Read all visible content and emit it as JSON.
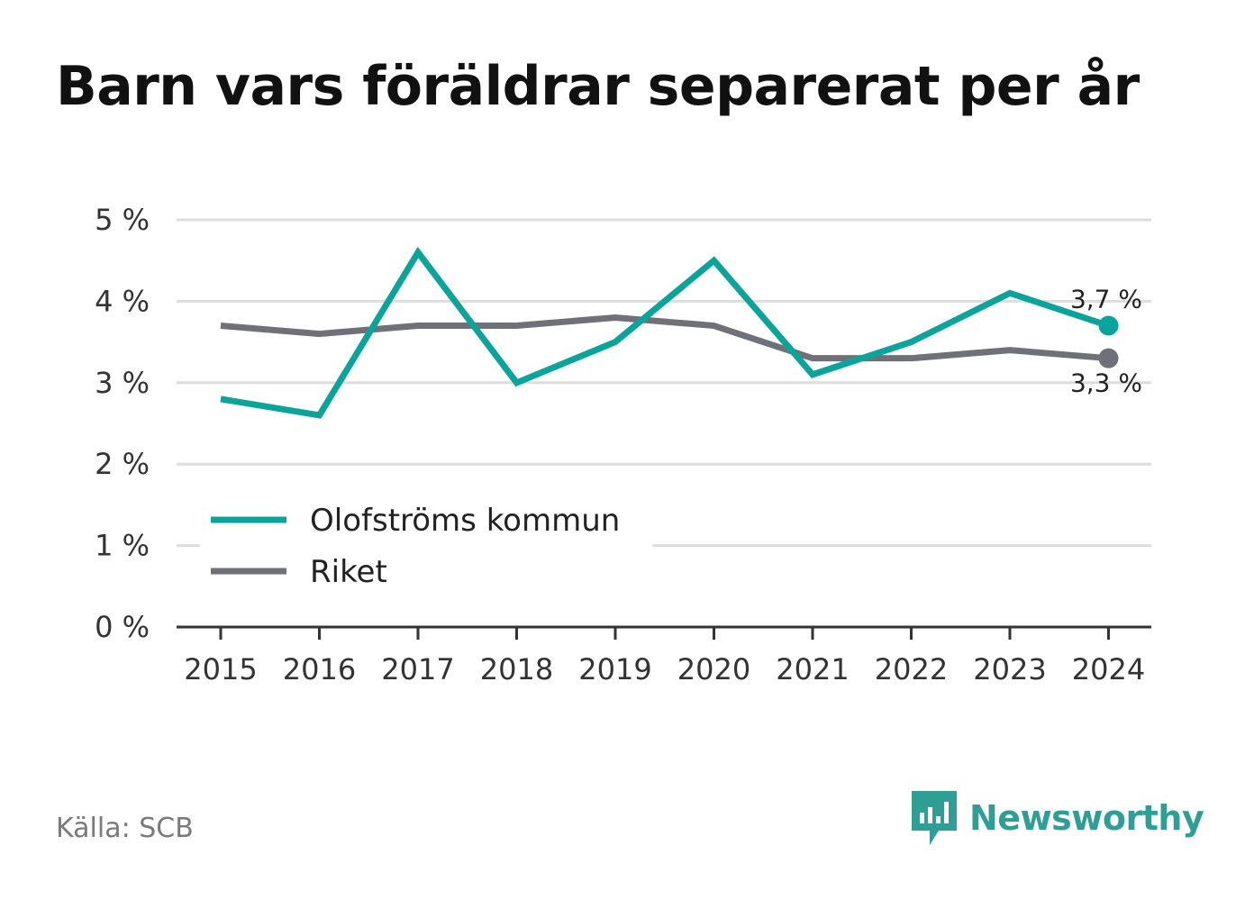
{
  "title": "Barn vars föräldrar separerat per år",
  "source": "Källa: SCB",
  "brand": {
    "name": "Newsworthy",
    "icon": "newsworthy-logo-icon"
  },
  "colors": {
    "accent": "#0aa49a",
    "national": "#707078",
    "grid": "#dddddd",
    "axis": "#333333",
    "brand": "#2f9f95"
  },
  "chart_data": {
    "type": "line",
    "x": [
      "2015",
      "2016",
      "2017",
      "2018",
      "2019",
      "2020",
      "2021",
      "2022",
      "2023",
      "2024"
    ],
    "ylim": [
      0,
      5
    ],
    "yticks": [
      {
        "value": 0,
        "label": "0 %"
      },
      {
        "value": 1,
        "label": "1 %"
      },
      {
        "value": 2,
        "label": "2 %"
      },
      {
        "value": 3,
        "label": "3 %"
      },
      {
        "value": 4,
        "label": "4 %"
      },
      {
        "value": 5,
        "label": "5 %"
      }
    ],
    "grid": true,
    "legend": "bottom-left",
    "series": [
      {
        "name": "Olofströms kommun",
        "color": "#0aa49a",
        "values": [
          2.8,
          2.6,
          4.6,
          3.0,
          3.5,
          4.5,
          3.1,
          3.5,
          4.1,
          3.7
        ],
        "end_label": "3,7 %"
      },
      {
        "name": "Riket",
        "color": "#707078",
        "values": [
          3.7,
          3.6,
          3.7,
          3.7,
          3.8,
          3.7,
          3.3,
          3.3,
          3.4,
          3.3
        ],
        "end_label": "3,3 %"
      }
    ]
  }
}
